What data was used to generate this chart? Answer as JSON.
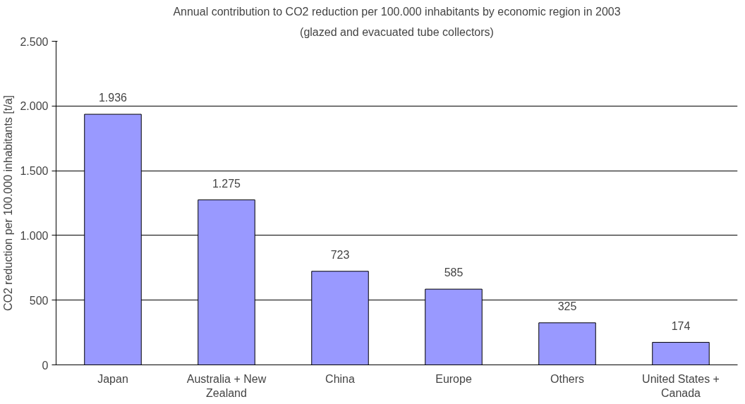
{
  "chart_data": {
    "type": "bar",
    "title": "Annual contribution to CO2 reduction per 100.000 inhabitants by economic region in 2003",
    "subtitle": "(glazed and evacuated tube collectors)",
    "ylabel": "CO2 reduction per 100.000 inhabitants [t/a]",
    "categories": [
      "Japan",
      "Australia + New Zealand",
      "China",
      "Europe",
      "Others",
      "United States + Canada"
    ],
    "values": [
      1936,
      1275,
      723,
      585,
      325,
      174
    ],
    "value_labels": [
      "1.936",
      "1.275",
      "723",
      "585",
      "325",
      "174"
    ],
    "color": "#9999ff",
    "ylim": [
      0,
      2500
    ],
    "yticks": [
      0,
      {
        "value": 500,
        "label": "500"
      },
      {
        "value": 1000,
        "label": "1.000"
      },
      {
        "value": 1500,
        "label": "1.500"
      },
      {
        "value": 2000,
        "label": "2.000"
      },
      {
        "value": 2500,
        "label": "2.500"
      }
    ],
    "grid": "y"
  }
}
